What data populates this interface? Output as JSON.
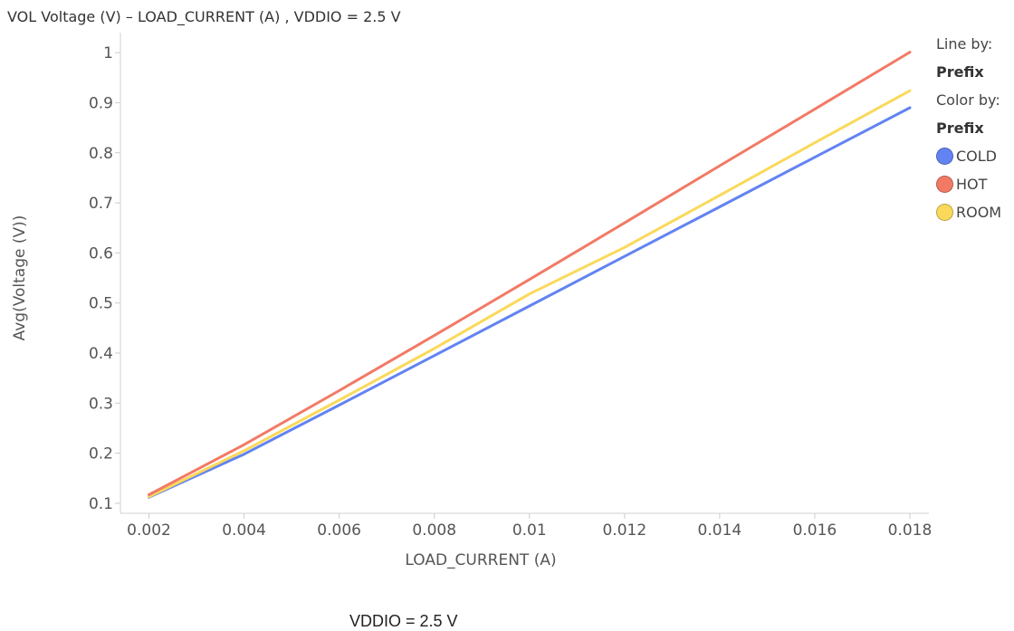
{
  "title": "VOL Voltage (V) – LOAD_CURRENT (A) , VDDIO = 2.5 V",
  "legend": {
    "line_by_label": "Line by:",
    "line_by_value": "Prefix",
    "color_by_label": "Color by:",
    "color_by_value": "Prefix",
    "items": [
      {
        "label": "COLD",
        "color": "#6283f2"
      },
      {
        "label": "HOT",
        "color": "#f27a65"
      },
      {
        "label": "ROOM",
        "color": "#fad95a"
      }
    ]
  },
  "footer_label": "VDDIO = 2.5 V",
  "chart_data": {
    "type": "line",
    "title": "VOL Voltage (V) – LOAD_CURRENT (A) , VDDIO = 2.5 V",
    "xlabel": "LOAD_CURRENT (A)",
    "ylabel": "Avg(Voltage (V))",
    "x": [
      0.002,
      0.004,
      0.006,
      0.008,
      0.01,
      0.012,
      0.014,
      0.016,
      0.018
    ],
    "x_tick_labels": [
      "0.002",
      "0.004",
      "0.006",
      "0.008",
      "0.01",
      "0.012",
      "0.014",
      "0.016",
      "0.018"
    ],
    "y_tick_labels": [
      "0.1",
      "0.2",
      "0.3",
      "0.4",
      "0.5",
      "0.6",
      "0.7",
      "0.8",
      "0.9",
      "1"
    ],
    "y_ticks": [
      0.1,
      0.2,
      0.3,
      0.4,
      0.5,
      0.6,
      0.7,
      0.8,
      0.9,
      1.0
    ],
    "xlim": [
      0.0014,
      0.0184
    ],
    "ylim": [
      0.08,
      1.04
    ],
    "grid": false,
    "legend_position": "right",
    "series": [
      {
        "name": "COLD",
        "color": "#6283f2",
        "values": [
          0.112,
          0.198,
          0.296,
          0.395,
          0.494,
          0.593,
          0.692,
          0.791,
          0.89
        ]
      },
      {
        "name": "HOT",
        "color": "#f27a65",
        "values": [
          0.117,
          0.217,
          0.325,
          0.435,
          0.547,
          0.66,
          0.774,
          0.887,
          1.001
        ]
      },
      {
        "name": "ROOM",
        "color": "#fad95a",
        "values": [
          0.113,
          0.205,
          0.306,
          0.409,
          0.518,
          0.611,
          0.715,
          0.82,
          0.924
        ]
      }
    ]
  }
}
